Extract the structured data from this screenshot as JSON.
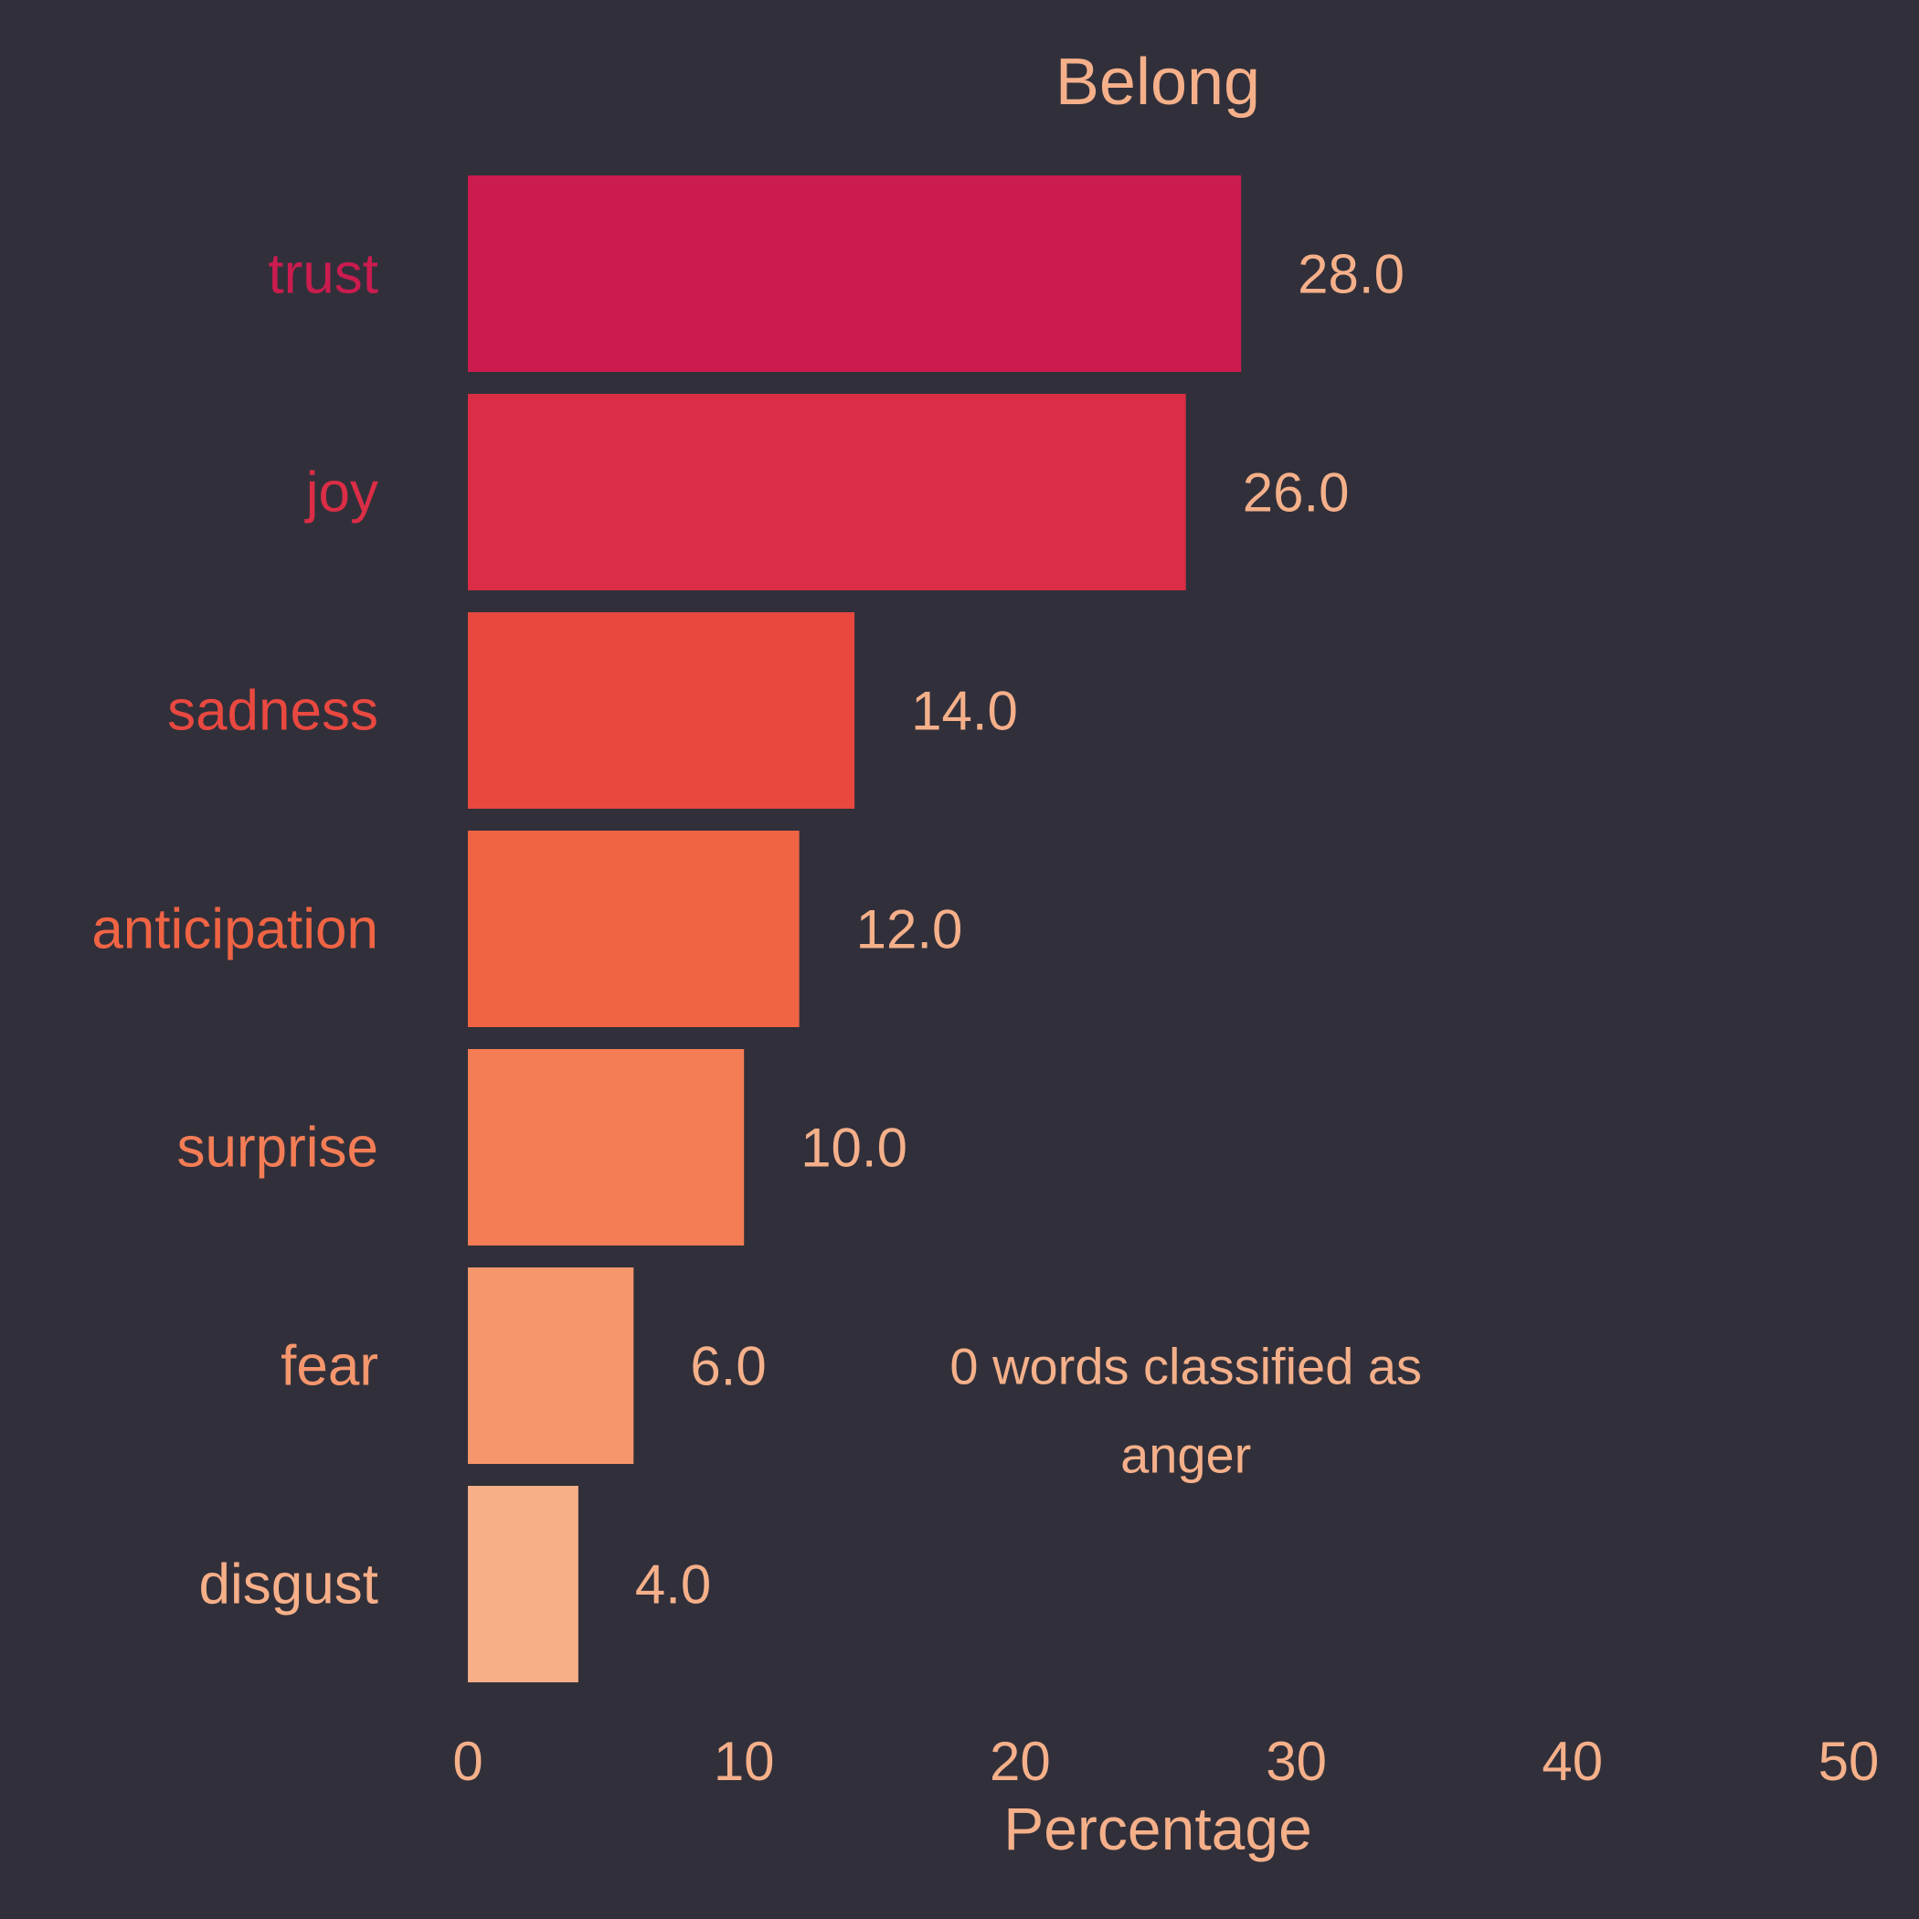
{
  "chart_data": {
    "type": "bar",
    "orientation": "horizontal",
    "title": "Belong",
    "xlabel": "Percentage",
    "ylabel": "",
    "categories": [
      "trust",
      "joy",
      "sadness",
      "anticipation",
      "surprise",
      "fear",
      "disgust"
    ],
    "values": [
      28.0,
      26.0,
      14.0,
      12.0,
      10.0,
      6.0,
      4.0
    ],
    "value_labels": [
      "28.0",
      "26.0",
      "14.0",
      "12.0",
      "10.0",
      "6.0",
      "4.0"
    ],
    "xlim": [
      0,
      50
    ],
    "xticks": [
      0,
      10,
      20,
      30,
      40,
      50
    ],
    "grid": false,
    "legend": "none",
    "annotation": {
      "lines": [
        "0 words classified as",
        "anger"
      ],
      "x": 26,
      "category": "fear"
    },
    "colors": {
      "background": "#31303a",
      "text": "#f5b08a",
      "bars": [
        "#cb1b4f",
        "#db2d46",
        "#e94840",
        "#f06444",
        "#f47d56",
        "#f6966d",
        "#f6af88"
      ]
    }
  }
}
